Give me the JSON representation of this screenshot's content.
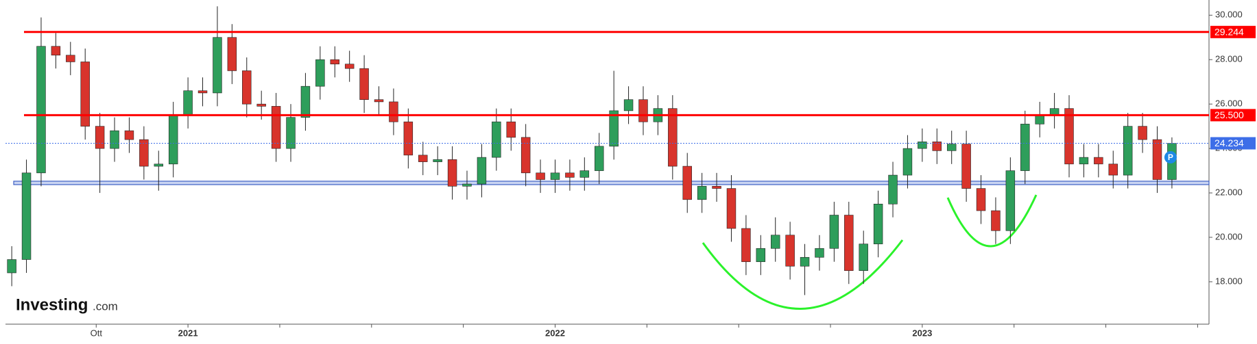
{
  "chart_data": {
    "type": "candlestick",
    "x": [
      2020.52,
      2020.56,
      2020.6,
      2020.64,
      2020.68,
      2020.72,
      2020.76,
      2020.8,
      2020.84,
      2020.88,
      2020.92,
      2020.96,
      2021,
      2021.04,
      2021.08,
      2021.12,
      2021.16,
      2021.2,
      2021.24,
      2021.28,
      2021.32,
      2021.36,
      2021.4,
      2021.44,
      2021.48,
      2021.52,
      2021.56,
      2021.6,
      2021.64,
      2021.68,
      2021.72,
      2021.76,
      2021.8,
      2021.84,
      2021.88,
      2021.92,
      2021.96,
      2022,
      2022.04,
      2022.08,
      2022.12,
      2022.16,
      2022.2,
      2022.24,
      2022.28,
      2022.32,
      2022.36,
      2022.4,
      2022.44,
      2022.48,
      2022.52,
      2022.56,
      2022.6,
      2022.64,
      2022.68,
      2022.72,
      2022.76,
      2022.8,
      2022.84,
      2022.88,
      2022.92,
      2022.96,
      2023,
      2023.04,
      2023.08,
      2023.12,
      2023.16,
      2023.2,
      2023.24,
      2023.28,
      2023.32,
      2023.36,
      2023.4,
      2023.44,
      2023.48,
      2023.52,
      2023.56,
      2023.6,
      2023.64,
      2023.68
    ],
    "open": [
      18400,
      19000,
      22900,
      28600,
      28200,
      27900,
      25000,
      24000,
      24800,
      24400,
      23200,
      23300,
      25500,
      26600,
      26500,
      29000,
      27500,
      26000,
      25900,
      24000,
      25400,
      26800,
      28000,
      27800,
      27600,
      26200,
      26100,
      25200,
      23700,
      23400,
      23500,
      22300,
      22400,
      23600,
      25200,
      24500,
      22900,
      22600,
      22900,
      22700,
      23000,
      24100,
      25700,
      26200,
      25200,
      25800,
      23200,
      21700,
      22300,
      22200,
      20400,
      18900,
      19500,
      20100,
      18700,
      19100,
      19500,
      21000,
      18500,
      19700,
      21500,
      22800,
      24000,
      24300,
      23900,
      24200,
      22200,
      21200,
      20300,
      23000,
      25100,
      25500,
      25800,
      23300,
      23600,
      23300,
      22800,
      25000,
      24400,
      22600
    ],
    "high": [
      19600,
      23500,
      29900,
      29200,
      28800,
      28500,
      25600,
      25400,
      25400,
      25000,
      23900,
      26100,
      27200,
      27200,
      30400,
      29600,
      28100,
      26600,
      26500,
      26000,
      27400,
      28600,
      28600,
      28400,
      28200,
      26800,
      26700,
      25800,
      24300,
      24100,
      24100,
      23000,
      24200,
      25800,
      25800,
      25100,
      23500,
      23500,
      23500,
      23600,
      24700,
      27500,
      26800,
      26800,
      26400,
      26400,
      23800,
      22900,
      22900,
      22800,
      21000,
      20100,
      20900,
      20700,
      19700,
      20100,
      21600,
      21600,
      20300,
      22100,
      23400,
      24600,
      24900,
      24900,
      24800,
      24800,
      22800,
      21800,
      23600,
      25700,
      26100,
      26500,
      26400,
      24200,
      24200,
      23900,
      25600,
      25600,
      25000,
      24500
    ],
    "low": [
      17800,
      18400,
      22300,
      27600,
      27300,
      24400,
      22000,
      23400,
      23800,
      22600,
      22100,
      22700,
      24900,
      25900,
      25900,
      26900,
      25400,
      25300,
      23400,
      23400,
      24800,
      26200,
      27200,
      27000,
      25600,
      25500,
      24600,
      23100,
      22800,
      22800,
      21700,
      21700,
      21800,
      23000,
      23900,
      22300,
      22000,
      22000,
      22100,
      22100,
      22400,
      23500,
      25100,
      24600,
      24600,
      22600,
      21100,
      21100,
      21600,
      19800,
      18300,
      18300,
      18900,
      18100,
      17400,
      18500,
      18900,
      17900,
      17900,
      19100,
      20900,
      22200,
      23400,
      23300,
      23300,
      21600,
      20600,
      19700,
      19700,
      22400,
      24500,
      24900,
      22700,
      22700,
      22700,
      22200,
      22200,
      23800,
      22000,
      22200
    ],
    "close": [
      19000,
      22900,
      28600,
      28200,
      27900,
      25000,
      24000,
      24800,
      24400,
      23200,
      23300,
      25500,
      26600,
      26500,
      29000,
      27500,
      26000,
      25900,
      24000,
      25400,
      26800,
      28000,
      27800,
      27600,
      26200,
      26100,
      25200,
      23700,
      23400,
      23500,
      22300,
      22400,
      23600,
      25200,
      24500,
      22900,
      22600,
      22900,
      22700,
      23000,
      24100,
      25700,
      26200,
      25200,
      25800,
      23200,
      21700,
      22300,
      22200,
      20400,
      18900,
      19500,
      20100,
      18700,
      19100,
      19500,
      21000,
      18500,
      19700,
      21500,
      22800,
      24000,
      24300,
      23900,
      24200,
      22200,
      21200,
      20300,
      23000,
      25100,
      25500,
      25800,
      23300,
      23600,
      23300,
      22800,
      25000,
      24400,
      22600,
      24230
    ],
    "up_color": "#2e9e5b",
    "down_color": "#d8342c",
    "xlim": [
      2020.488,
      2023.781
    ],
    "xticks": [
      {
        "value": 2020.75,
        "label": "Ott"
      },
      2021,
      2022,
      2023
    ],
    "xminorticks": [
      2021.25,
      2021.5,
      2021.75,
      2022.25,
      2022.5,
      2022.75,
      2023.25,
      2023.5,
      2023.75
    ],
    "ylim": [
      16090,
      30685
    ],
    "yticks": [
      {
        "value": 18000,
        "label": "18.000"
      },
      {
        "value": 20000,
        "label": "20.000"
      },
      {
        "value": 22000,
        "label": "22.000"
      },
      {
        "value": 24000,
        "label": "24.000"
      },
      {
        "value": 26000,
        "label": "26.000"
      },
      {
        "value": 28000,
        "label": "28.000"
      },
      {
        "value": 30000,
        "label": "30.000"
      }
    ],
    "levels": [
      {
        "value": 29244,
        "label": "29.244",
        "color": "#ff0000",
        "style": "solid"
      },
      {
        "value": 25500,
        "label": "25.500",
        "color": "#ff0000",
        "style": "solid"
      },
      {
        "value": 24234,
        "label": "24.234",
        "color": "#3d6ee8",
        "style": "dotted"
      }
    ],
    "support_level": 22450,
    "support_color": "#3d5fc4",
    "marker_label": "P"
  },
  "logo": {
    "name": "Investing",
    "suffix": ".com"
  }
}
